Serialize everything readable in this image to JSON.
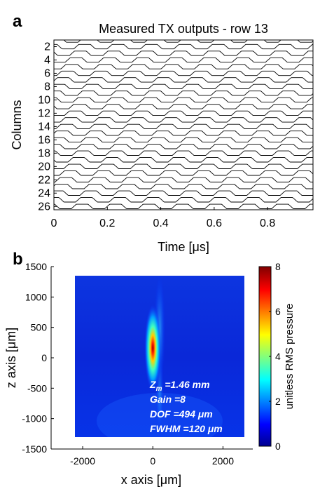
{
  "chart_data": [
    {
      "panel": "a",
      "type": "line",
      "title": "Measured TX outputs - row 13",
      "xlabel": "Time [μs]",
      "ylabel": "Columns",
      "xlim": [
        0,
        0.97
      ],
      "ylim": [
        26.5,
        1
      ],
      "xticks": [
        "0",
        "0.2",
        "0.4",
        "0.6",
        "0.8"
      ],
      "xtick_values": [
        0,
        0.2,
        0.4,
        0.6,
        0.8
      ],
      "yticks": [
        "2",
        "4",
        "6",
        "8",
        "10",
        "12",
        "14",
        "16",
        "18",
        "20",
        "22",
        "24",
        "26"
      ],
      "ytick_values": [
        2,
        4,
        6,
        8,
        10,
        12,
        14,
        16,
        18,
        20,
        22,
        24,
        26
      ],
      "series_count": 26,
      "period_us": 0.125,
      "phase_step_us": 0.016,
      "color": "#000000",
      "grid": false
    },
    {
      "panel": "b",
      "type": "heatmap",
      "xlabel": "x axis [μm]",
      "ylabel": "z axis [μm]",
      "xlim": [
        -2900,
        2850
      ],
      "ylim": [
        -1500,
        1500
      ],
      "xticks": [
        "-2000",
        "0",
        "2000"
      ],
      "xtick_values": [
        -2000,
        0,
        2000
      ],
      "yticks": [
        "1500",
        "1000",
        "500",
        "0",
        "-500",
        "-1000",
        "-1500"
      ],
      "ytick_values": [
        1500,
        1000,
        500,
        0,
        -500,
        -1000,
        -1500
      ],
      "colorbar": {
        "label": "unitless RMS pressure",
        "range": [
          0,
          8
        ],
        "ticks": [
          "8",
          "6",
          "4",
          "2",
          "0"
        ],
        "tick_values": [
          8,
          6,
          4,
          2,
          0
        ]
      },
      "image_extent_z": [
        -1350,
        1350
      ],
      "peak": {
        "x": 0,
        "z": 160,
        "value": 8
      },
      "annotations": {
        "zm_symbol": "Z",
        "zm_sub": "m",
        "zm_value": " =1.46 mm",
        "gain": "Gain =8",
        "dof": "DOF =494 μm",
        "fwhm": "FWHM =120 μm"
      },
      "colormap": [
        "#00008f",
        "#0000ff",
        "#00ffff",
        "#ffff00",
        "#ff0000",
        "#800000"
      ]
    }
  ],
  "panel_labels": {
    "a": "a",
    "b": "b"
  }
}
